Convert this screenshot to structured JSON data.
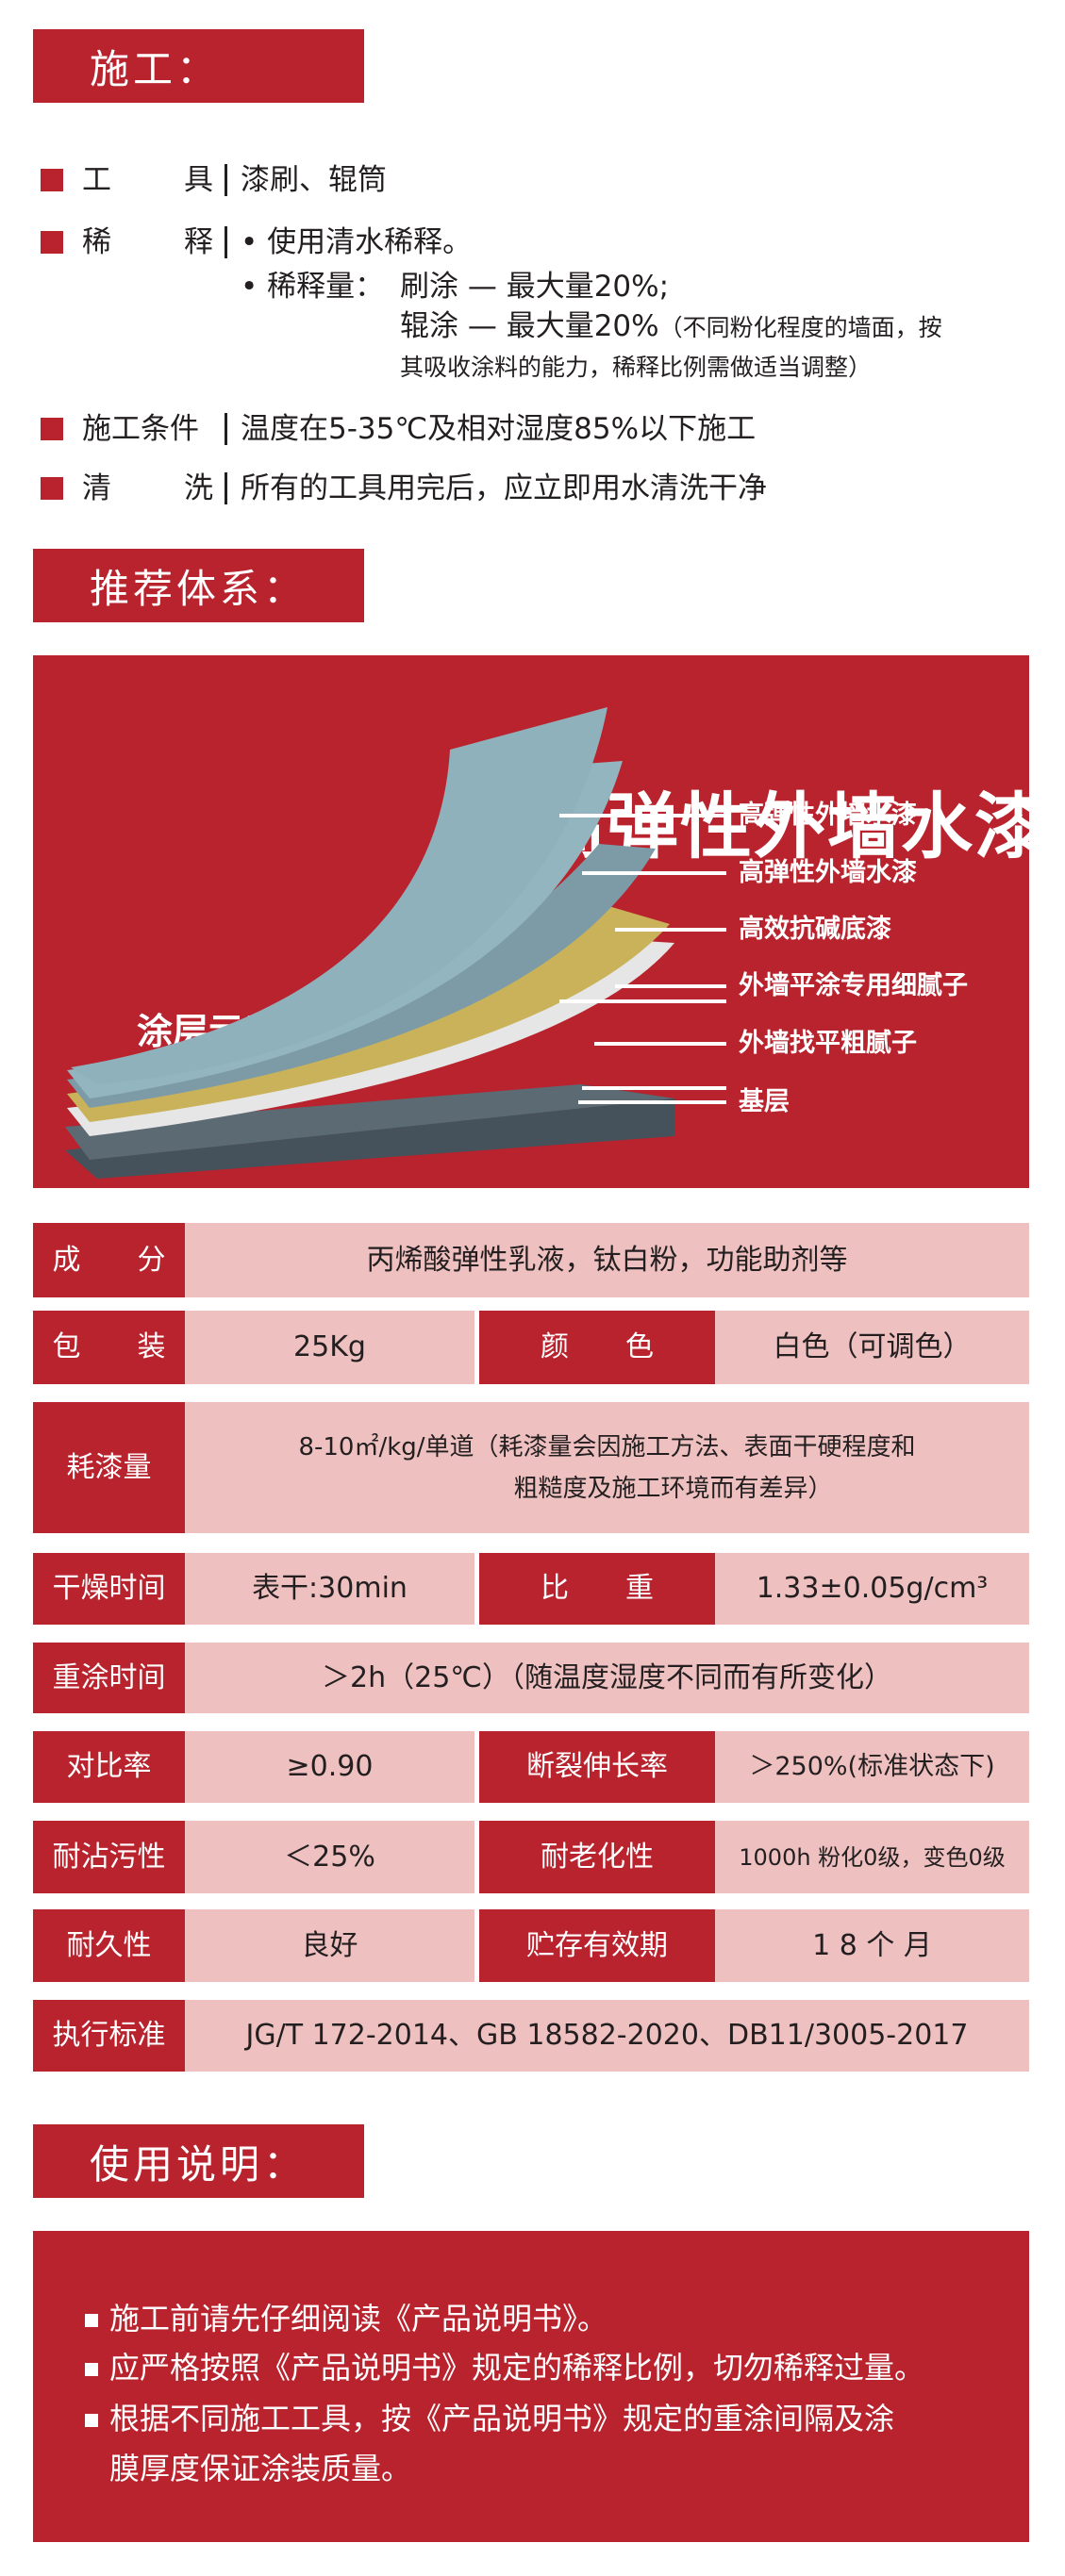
{
  "construction": {
    "header": "施工：",
    "tools": {
      "label_a": "工",
      "label_b": "具",
      "value": "漆刷、辊筒"
    },
    "dilution": {
      "label_a": "稀",
      "label_b": "释",
      "bullet1": "• 使用清水稀释。",
      "bullet2_label": "• 稀释量：",
      "brush": "刷涂 — 最大量20%;",
      "roller": "辊涂 — 最大量20%",
      "note1": "（不同粉化程度的墙面，按",
      "note2": "其吸收涂料的能力，稀释比例需做适当调整）"
    },
    "conditions": {
      "label": "施工条件",
      "value": "温度在5-35℃及相对湿度85%以下施工"
    },
    "cleaning": {
      "label_a": "清",
      "label_b": "洗",
      "value": "所有的工具用完后，应立即用水清洗干净"
    }
  },
  "system": {
    "header": "推荐体系：",
    "title": "高弹性外墙水漆",
    "subtitle": "涂层示意图",
    "layers": [
      "高弹性外墙水漆",
      "高弹性外墙水漆",
      "高效抗碱底漆",
      "外墙平涂专用细腻子",
      "外墙找平粗腻子",
      "基层"
    ],
    "layer_colors": [
      "#8fb1bb",
      "#93b5bf",
      "#7c9ba6",
      "#c9b25a",
      "#e8e8e8",
      "#48545e"
    ]
  },
  "specs": {
    "composition": {
      "label": "成　　分",
      "value": "丙烯酸弹性乳液，钛白粉，功能助剂等"
    },
    "packaging": {
      "label": "包　　装",
      "value": "25Kg"
    },
    "color": {
      "label": "颜　　色",
      "value": "白色（可调色）"
    },
    "coverage": {
      "label": "耗漆量",
      "value1": "8-10㎡/kg/单道（耗漆量会因施工方法、表面干硬程度和",
      "value2": "粗糙度及施工环境而有差异）"
    },
    "drying": {
      "label": "干燥时间",
      "value": "表干:30min"
    },
    "density": {
      "label": "比　　重",
      "value": "1.33±0.05g/cm³"
    },
    "recoat": {
      "label": "重涂时间",
      "value": "＞2h（25℃）（随温度湿度不同而有所变化）"
    },
    "contrast": {
      "label": "对比率",
      "value": "≥0.90"
    },
    "elongation": {
      "label": "断裂伸长率",
      "value": "＞250%(标准状态下)"
    },
    "stain": {
      "label": "耐沾污性",
      "value": "＜25%"
    },
    "aging": {
      "label": "耐老化性",
      "value": "1000h 粉化0级，变色0级"
    },
    "durability": {
      "label": "耐久性",
      "value": "良好"
    },
    "shelf": {
      "label": "贮存有效期",
      "value": "1 8 个 月"
    },
    "standard": {
      "label": "执行标准",
      "value": "JG/T 172-2014、GB 18582-2020、DB11/3005-2017"
    }
  },
  "usage": {
    "header": "使用说明：",
    "items": [
      "施工前请先仔细阅读《产品说明书》。",
      "应严格按照《产品说明书》规定的稀释比例，切勿稀释过量。",
      "根据不同施工工具，按《产品说明书》规定的重涂间隔及涂"
    ],
    "item3_cont": "膜厚度保证涂装质量。"
  },
  "colors": {
    "brand_red": "#b8232e",
    "value_pink": "#efc0c0"
  }
}
